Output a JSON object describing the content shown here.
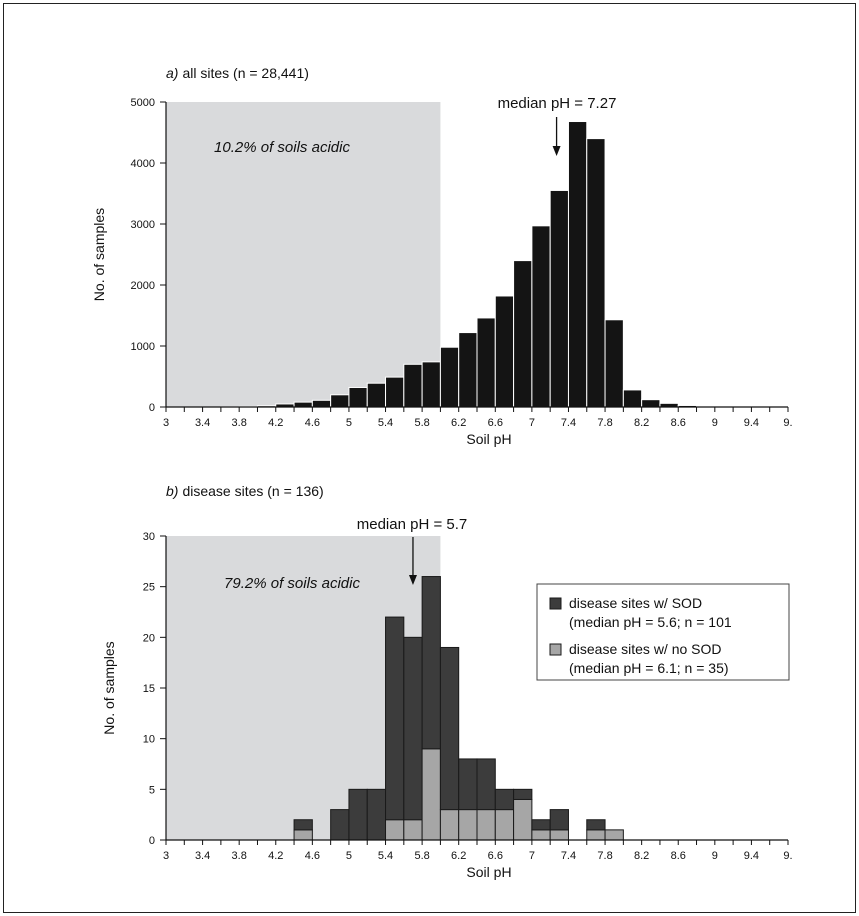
{
  "chart_data": [
    {
      "type": "bar",
      "panel_label": "a)",
      "title": "all sites (n = 28,441)",
      "xlabel": "Soil pH",
      "ylabel": "No. of samples",
      "xlim": [
        3,
        9.8
      ],
      "ylim": [
        0,
        5000
      ],
      "yticks": [
        "0",
        "1000",
        "2000",
        "3000",
        "4000",
        "5000"
      ],
      "xticks": [
        "3",
        "3.4",
        "3.8",
        "4.2",
        "4.6",
        "5",
        "5.4",
        "5.8",
        "6.2",
        "6.6",
        "7",
        "7.4",
        "7.8",
        "8.2",
        "8.6",
        "9",
        "9.4",
        "9."
      ],
      "bin_width": 0.2,
      "bin_starts": [
        3.0,
        3.2,
        3.4,
        3.6,
        3.8,
        4.0,
        4.2,
        4.4,
        4.6,
        4.8,
        5.0,
        5.2,
        5.4,
        5.6,
        5.8,
        6.0,
        6.2,
        6.4,
        6.6,
        6.8,
        7.0,
        7.2,
        7.4,
        7.6,
        7.8,
        8.0,
        8.2,
        8.4,
        8.6,
        8.8,
        9.0,
        9.2,
        9.4,
        9.6
      ],
      "values": [
        0,
        0,
        0,
        5,
        10,
        20,
        50,
        80,
        110,
        200,
        320,
        390,
        490,
        700,
        740,
        980,
        1220,
        1460,
        1820,
        2400,
        2970,
        3550,
        4680,
        4400,
        1430,
        280,
        120,
        60,
        25,
        15,
        10,
        5,
        5,
        2
      ],
      "shaded_region": {
        "x_from": 3,
        "x_to": 6
      },
      "annotations": {
        "shade_label": "10.2% of soils acidic",
        "median_label": "median pH = 7.27",
        "median_value": 7.27
      },
      "colors": {
        "bar": "#141414",
        "shade": "#d9dadc"
      },
      "grid": false
    },
    {
      "type": "bar",
      "panel_label": "b)",
      "title": "disease sites (n = 136)",
      "xlabel": "Soil pH",
      "ylabel": "No. of samples",
      "xlim": [
        3,
        9.8
      ],
      "ylim": [
        0,
        30
      ],
      "yticks": [
        "0",
        "5",
        "10",
        "15",
        "20",
        "25",
        "30"
      ],
      "xticks": [
        "3",
        "3.4",
        "3.8",
        "4.2",
        "4.6",
        "5",
        "5.4",
        "5.8",
        "6.2",
        "6.6",
        "7",
        "7.4",
        "7.8",
        "8.2",
        "8.6",
        "9",
        "9.4",
        "9."
      ],
      "bin_width": 0.2,
      "bin_starts": [
        4.4,
        4.8,
        5.0,
        5.2,
        5.4,
        5.6,
        5.8,
        6.0,
        6.2,
        6.4,
        6.6,
        6.8,
        7.0,
        7.2,
        7.6,
        7.8
      ],
      "series": [
        {
          "name": "disease sites w/ SOD",
          "detail": "(median pH = 5.6; n = 101",
          "values": [
            1,
            3,
            5,
            5,
            20,
            18,
            17,
            16,
            5,
            5,
            2,
            1,
            1,
            2,
            1,
            0
          ]
        },
        {
          "name": "disease sites w/ no SOD",
          "detail": "(median pH = 6.1; n = 35)",
          "values": [
            1,
            0,
            0,
            0,
            2,
            2,
            9,
            3,
            3,
            3,
            3,
            4,
            1,
            1,
            1,
            1
          ]
        }
      ],
      "stacked": true,
      "legend_position": "right",
      "shaded_region": {
        "x_from": 3,
        "x_to": 6
      },
      "annotations": {
        "shade_label": "79.2% of soils acidic",
        "median_label": "median pH = 5.7",
        "median_value": 5.7
      },
      "colors": {
        "sod": "#3c3c3c",
        "no_sod": "#a6a6a6",
        "shade": "#d9dadc"
      },
      "grid": false
    }
  ]
}
